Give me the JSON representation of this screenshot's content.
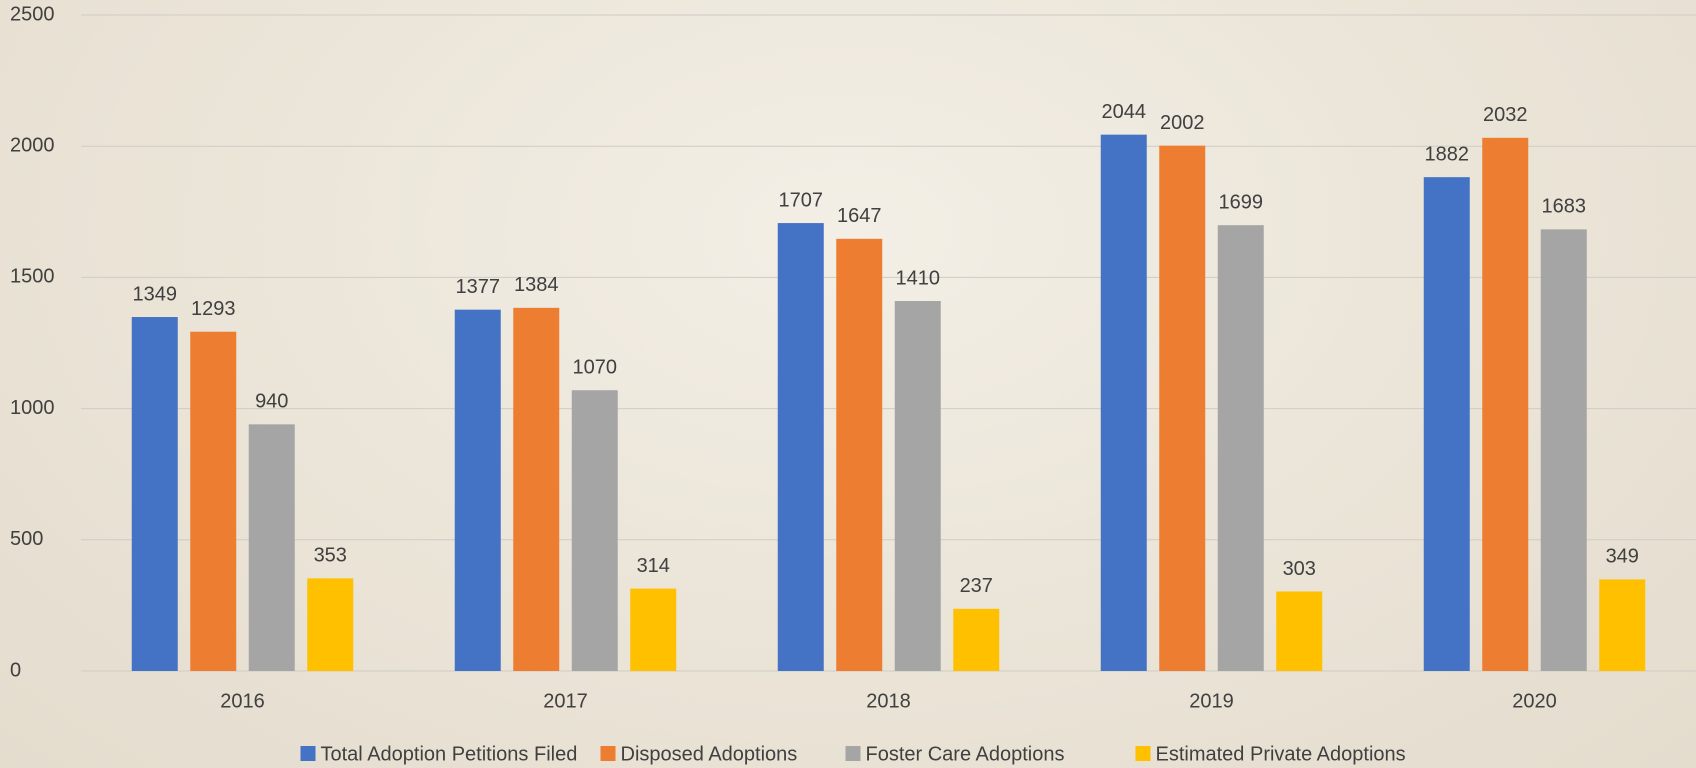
{
  "chart_data": {
    "type": "bar",
    "categories": [
      "2016",
      "2017",
      "2018",
      "2019",
      "2020"
    ],
    "series": [
      {
        "name": "Total Adoption Petitions Filed",
        "color": "#4472c4",
        "values": [
          1349,
          1377,
          1707,
          2044,
          1882
        ]
      },
      {
        "name": "Disposed Adoptions",
        "color": "#ed7d31",
        "values": [
          1293,
          1384,
          1647,
          2002,
          2032
        ]
      },
      {
        "name": "Foster Care Adoptions",
        "color": "#a5a5a5",
        "values": [
          940,
          1070,
          1410,
          1699,
          1683
        ]
      },
      {
        "name": "Estimated Private Adoptions",
        "color": "#ffc000",
        "values": [
          353,
          314,
          237,
          303,
          349
        ]
      }
    ],
    "ylim": [
      0,
      2500
    ],
    "yticks": [
      0,
      500,
      1000,
      1500,
      2000,
      2500
    ],
    "grid": true,
    "legend": "bottom"
  }
}
